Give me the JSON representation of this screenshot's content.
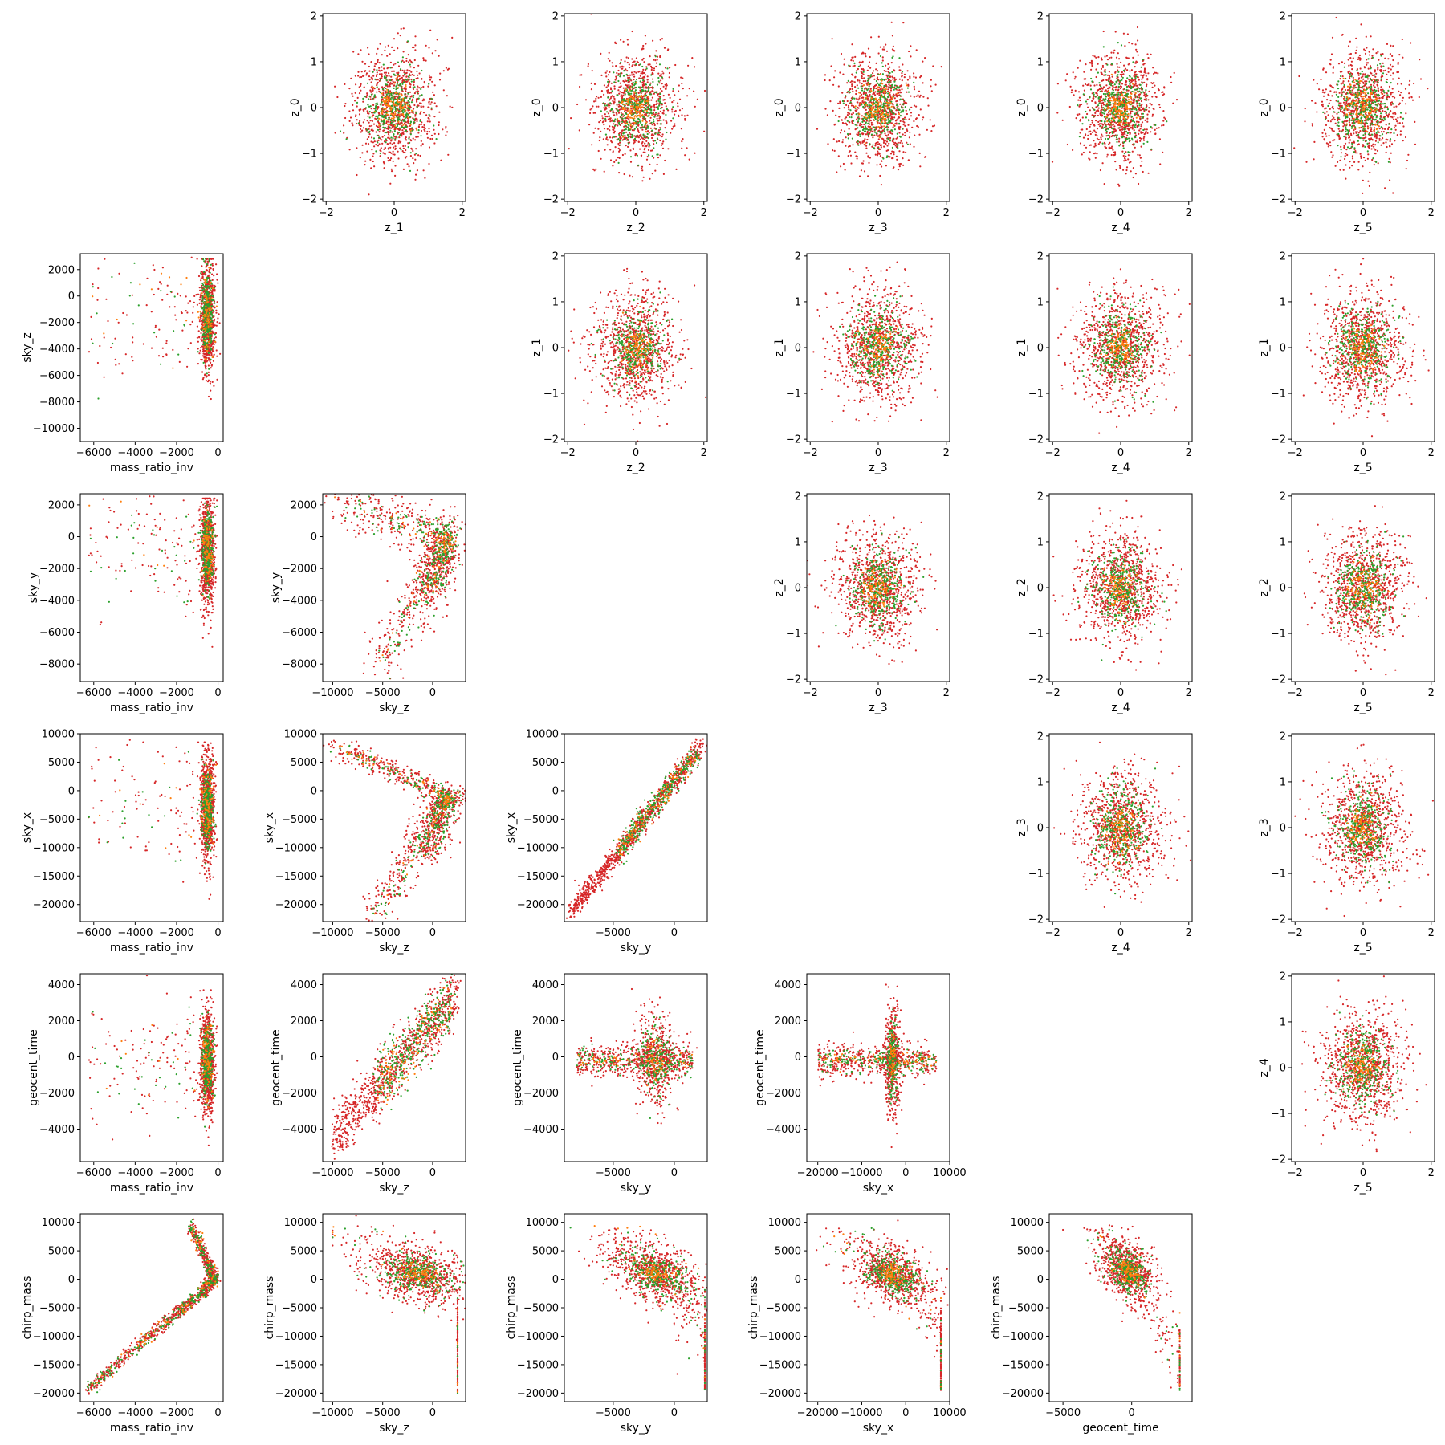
{
  "figure": {
    "type": "corner-scatter-matrix",
    "series_colors": {
      "red": "#d62728",
      "green": "#2ca02c",
      "orange": "#ff7f0e"
    }
  },
  "chart_data": [
    {
      "type": "scatter",
      "row": 0,
      "col": 1,
      "xlabel": "z_1",
      "ylabel": "z_0",
      "xlim": [
        -2.1,
        2.1
      ],
      "ylim": [
        -2.05,
        2.05
      ],
      "xticks": [
        -2,
        0,
        2
      ],
      "yticks": [
        -2,
        -1,
        0,
        1,
        2
      ],
      "gen": {
        "kind": "gauss",
        "cx": 0,
        "cy": 0,
        "sx": 0.6,
        "sy": 0.6
      }
    },
    {
      "type": "scatter",
      "row": 0,
      "col": 2,
      "xlabel": "z_2",
      "ylabel": "z_0",
      "xlim": [
        -2.1,
        2.1
      ],
      "ylim": [
        -2.05,
        2.05
      ],
      "xticks": [
        -2,
        0,
        2
      ],
      "yticks": [
        -2,
        -1,
        0,
        1,
        2
      ],
      "gen": {
        "kind": "gauss",
        "cx": 0,
        "cy": 0,
        "sx": 0.6,
        "sy": 0.6
      }
    },
    {
      "type": "scatter",
      "row": 0,
      "col": 3,
      "xlabel": "z_3",
      "ylabel": "z_0",
      "xlim": [
        -2.1,
        2.1
      ],
      "ylim": [
        -2.05,
        2.05
      ],
      "xticks": [
        -2,
        0,
        2
      ],
      "yticks": [
        -2,
        -1,
        0,
        1,
        2
      ],
      "gen": {
        "kind": "gauss",
        "cx": 0,
        "cy": 0,
        "sx": 0.6,
        "sy": 0.6
      }
    },
    {
      "type": "scatter",
      "row": 0,
      "col": 4,
      "xlabel": "z_4",
      "ylabel": "z_0",
      "xlim": [
        -2.1,
        2.1
      ],
      "ylim": [
        -2.05,
        2.05
      ],
      "xticks": [
        -2,
        0,
        2
      ],
      "yticks": [
        -2,
        -1,
        0,
        1,
        2
      ],
      "gen": {
        "kind": "gauss",
        "cx": 0,
        "cy": 0,
        "sx": 0.6,
        "sy": 0.6
      }
    },
    {
      "type": "scatter",
      "row": 0,
      "col": 5,
      "xlabel": "z_5",
      "ylabel": "z_0",
      "xlim": [
        -2.1,
        2.1
      ],
      "ylim": [
        -2.05,
        2.05
      ],
      "xticks": [
        -2,
        0,
        2
      ],
      "yticks": [
        -2,
        -1,
        0,
        1,
        2
      ],
      "gen": {
        "kind": "gauss",
        "cx": 0,
        "cy": 0,
        "sx": 0.6,
        "sy": 0.6
      }
    },
    {
      "type": "scatter",
      "row": 1,
      "col": 0,
      "xlabel": "mass_ratio_inv",
      "ylabel": "sky_z",
      "xlim": [
        -6650,
        250
      ],
      "ylim": [
        -11000,
        3200
      ],
      "xticks": [
        -6000,
        -4000,
        -2000,
        0
      ],
      "yticks": [
        -10000,
        -8000,
        -6000,
        -4000,
        -2000,
        0,
        2000
      ],
      "gen": {
        "kind": "vwall",
        "x0": -500,
        "xs": 170,
        "ylo": -10500,
        "yhi": 2800,
        "ypeak": -1500,
        "tail": 0.12,
        "tailx": -6300
      }
    },
    {
      "type": "scatter",
      "row": 1,
      "col": 2,
      "xlabel": "z_2",
      "ylabel": "z_1",
      "xlim": [
        -2.1,
        2.1
      ],
      "ylim": [
        -2.05,
        2.05
      ],
      "xticks": [
        -2,
        0,
        2
      ],
      "yticks": [
        -2,
        -1,
        0,
        1,
        2
      ],
      "gen": {
        "kind": "gauss",
        "cx": 0,
        "cy": 0,
        "sx": 0.6,
        "sy": 0.6
      }
    },
    {
      "type": "scatter",
      "row": 1,
      "col": 3,
      "xlabel": "z_3",
      "ylabel": "z_1",
      "xlim": [
        -2.1,
        2.1
      ],
      "ylim": [
        -2.05,
        2.05
      ],
      "xticks": [
        -2,
        0,
        2
      ],
      "yticks": [
        -2,
        -1,
        0,
        1,
        2
      ],
      "gen": {
        "kind": "gauss",
        "cx": 0,
        "cy": 0,
        "sx": 0.6,
        "sy": 0.6
      }
    },
    {
      "type": "scatter",
      "row": 1,
      "col": 4,
      "xlabel": "z_4",
      "ylabel": "z_1",
      "xlim": [
        -2.1,
        2.1
      ],
      "ylim": [
        -2.05,
        2.05
      ],
      "xticks": [
        -2,
        0,
        2
      ],
      "yticks": [
        -2,
        -1,
        0,
        1,
        2
      ],
      "gen": {
        "kind": "gauss",
        "cx": 0,
        "cy": 0,
        "sx": 0.6,
        "sy": 0.6
      }
    },
    {
      "type": "scatter",
      "row": 1,
      "col": 5,
      "xlabel": "z_5",
      "ylabel": "z_1",
      "xlim": [
        -2.1,
        2.1
      ],
      "ylim": [
        -2.05,
        2.05
      ],
      "xticks": [
        -2,
        0,
        2
      ],
      "yticks": [
        -2,
        -1,
        0,
        1,
        2
      ],
      "gen": {
        "kind": "gauss",
        "cx": 0,
        "cy": 0,
        "sx": 0.6,
        "sy": 0.6
      }
    },
    {
      "type": "scatter",
      "row": 2,
      "col": 0,
      "xlabel": "mass_ratio_inv",
      "ylabel": "sky_y",
      "xlim": [
        -6650,
        250
      ],
      "ylim": [
        -9100,
        2700
      ],
      "xticks": [
        -6000,
        -4000,
        -2000,
        0
      ],
      "yticks": [
        -8000,
        -6000,
        -4000,
        -2000,
        0,
        2000
      ],
      "gen": {
        "kind": "vwall",
        "x0": -500,
        "xs": 170,
        "ylo": -8400,
        "yhi": 2400,
        "ypeak": -1000,
        "tail": 0.12,
        "tailx": -6300
      }
    },
    {
      "type": "scatter",
      "row": 2,
      "col": 1,
      "xlabel": "sky_z",
      "ylabel": "sky_y",
      "xlim": [
        -11000,
        3300
      ],
      "ylim": [
        -9100,
        2700
      ],
      "xticks": [
        -10000,
        -5000,
        0
      ],
      "yticks": [
        -8000,
        -6000,
        -4000,
        -2000,
        0,
        2000
      ],
      "gen": {
        "kind": "wedge",
        "apex": [
          1500,
          -200
        ],
        "ends": [
          [
            -10000,
            2400
          ],
          [
            -5500,
            -8400
          ],
          [
            -500,
            -4000
          ]
        ]
      }
    },
    {
      "type": "scatter",
      "row": 2,
      "col": 3,
      "xlabel": "z_3",
      "ylabel": "z_2",
      "xlim": [
        -2.1,
        2.1
      ],
      "ylim": [
        -2.05,
        2.05
      ],
      "xticks": [
        -2,
        0,
        2
      ],
      "yticks": [
        -2,
        -1,
        0,
        1,
        2
      ],
      "gen": {
        "kind": "gauss",
        "cx": 0,
        "cy": 0,
        "sx": 0.6,
        "sy": 0.6
      }
    },
    {
      "type": "scatter",
      "row": 2,
      "col": 4,
      "xlabel": "z_4",
      "ylabel": "z_2",
      "xlim": [
        -2.1,
        2.1
      ],
      "ylim": [
        -2.05,
        2.05
      ],
      "xticks": [
        -2,
        0,
        2
      ],
      "yticks": [
        -2,
        -1,
        0,
        1,
        2
      ],
      "gen": {
        "kind": "gauss",
        "cx": 0,
        "cy": 0,
        "sx": 0.6,
        "sy": 0.6
      }
    },
    {
      "type": "scatter",
      "row": 2,
      "col": 5,
      "xlabel": "z_5",
      "ylabel": "z_2",
      "xlim": [
        -2.1,
        2.1
      ],
      "ylim": [
        -2.05,
        2.05
      ],
      "xticks": [
        -2,
        0,
        2
      ],
      "yticks": [
        -2,
        -1,
        0,
        1,
        2
      ],
      "gen": {
        "kind": "gauss",
        "cx": 0,
        "cy": 0,
        "sx": 0.6,
        "sy": 0.6
      }
    },
    {
      "type": "scatter",
      "row": 3,
      "col": 0,
      "xlabel": "mass_ratio_inv",
      "ylabel": "sky_x",
      "xlim": [
        -6650,
        250
      ],
      "ylim": [
        -23000,
        10000
      ],
      "xticks": [
        -6000,
        -4000,
        -2000,
        0
      ],
      "yticks": [
        -20000,
        -15000,
        -10000,
        -5000,
        0,
        5000,
        10000
      ],
      "gen": {
        "kind": "vwall",
        "x0": -500,
        "xs": 170,
        "ylo": -21500,
        "yhi": 8500,
        "ypeak": -3000,
        "tail": 0.12,
        "tailx": -6300
      }
    },
    {
      "type": "scatter",
      "row": 3,
      "col": 1,
      "xlabel": "sky_z",
      "ylabel": "sky_x",
      "xlim": [
        -11000,
        3300
      ],
      "ylim": [
        -23000,
        10000
      ],
      "xticks": [
        -10000,
        -5000,
        0
      ],
      "yticks": [
        -20000,
        -15000,
        -10000,
        -5000,
        0,
        5000,
        10000
      ],
      "gen": {
        "kind": "wedge",
        "apex": [
          1500,
          -1000
        ],
        "ends": [
          [
            -10000,
            8000
          ],
          [
            -5500,
            -21500
          ],
          [
            -500,
            -12000
          ]
        ]
      }
    },
    {
      "type": "scatter",
      "row": 3,
      "col": 2,
      "xlabel": "sky_y",
      "ylabel": "sky_x",
      "xlim": [
        -9000,
        2700
      ],
      "ylim": [
        -23000,
        10000
      ],
      "xticks": [
        -5000,
        0
      ],
      "yticks": [
        -20000,
        -15000,
        -10000,
        -5000,
        0,
        5000,
        10000
      ],
      "gen": {
        "kind": "line",
        "x0": -8500,
        "y0": -21500,
        "x1": 2300,
        "y1": 8000,
        "w": 900
      }
    },
    {
      "type": "scatter",
      "row": 3,
      "col": 4,
      "xlabel": "z_4",
      "ylabel": "z_3",
      "xlim": [
        -2.1,
        2.1
      ],
      "ylim": [
        -2.05,
        2.05
      ],
      "xticks": [
        -2,
        0,
        2
      ],
      "yticks": [
        -2,
        -1,
        0,
        1,
        2
      ],
      "gen": {
        "kind": "gauss",
        "cx": 0,
        "cy": 0,
        "sx": 0.6,
        "sy": 0.6
      }
    },
    {
      "type": "scatter",
      "row": 3,
      "col": 5,
      "xlabel": "z_5",
      "ylabel": "z_3",
      "xlim": [
        -2.1,
        2.1
      ],
      "ylim": [
        -2.05,
        2.05
      ],
      "xticks": [
        -2,
        0,
        2
      ],
      "yticks": [
        -2,
        -1,
        0,
        1,
        2
      ],
      "gen": {
        "kind": "gauss",
        "cx": 0,
        "cy": 0,
        "sx": 0.6,
        "sy": 0.6
      }
    },
    {
      "type": "scatter",
      "row": 4,
      "col": 0,
      "xlabel": "mass_ratio_inv",
      "ylabel": "geocent_time",
      "xlim": [
        -6650,
        250
      ],
      "ylim": [
        -5800,
        4600
      ],
      "xticks": [
        -6000,
        -4000,
        -2000,
        0
      ],
      "yticks": [
        -4000,
        -2000,
        0,
        2000,
        4000
      ],
      "gen": {
        "kind": "vwall",
        "x0": -500,
        "xs": 170,
        "ylo": -5200,
        "yhi": 3700,
        "ypeak": -300,
        "tail": 0.14,
        "tailx": -6300
      }
    },
    {
      "type": "scatter",
      "row": 4,
      "col": 1,
      "xlabel": "sky_z",
      "ylabel": "geocent_time",
      "xlim": [
        -11000,
        3300
      ],
      "ylim": [
        -5800,
        4600
      ],
      "xticks": [
        -10000,
        -5000,
        0
      ],
      "yticks": [
        -4000,
        -2000,
        0,
        2000,
        4000
      ],
      "gen": {
        "kind": "line",
        "x0": -10000,
        "y0": -4500,
        "x1": 2500,
        "y1": 3500,
        "w": 800
      }
    },
    {
      "type": "scatter",
      "row": 4,
      "col": 2,
      "xlabel": "sky_y",
      "ylabel": "geocent_time",
      "xlim": [
        -9000,
        2700
      ],
      "ylim": [
        -5800,
        4600
      ],
      "xticks": [
        -5000,
        0
      ],
      "yticks": [
        -4000,
        -2000,
        0,
        2000,
        4000
      ],
      "gen": {
        "kind": "cross",
        "cx": -1500,
        "cy": -200,
        "hx": [
          -8000,
          1500
        ],
        "vy": [
          -5000,
          4000
        ]
      }
    },
    {
      "type": "scatter",
      "row": 4,
      "col": 3,
      "xlabel": "sky_x",
      "ylabel": "geocent_time",
      "xlim": [
        -22500,
        10000
      ],
      "ylim": [
        -5800,
        4600
      ],
      "xticks": [
        -20000,
        -10000,
        0,
        10000
      ],
      "yticks": [
        -4000,
        -2000,
        0,
        2000,
        4000
      ],
      "gen": {
        "kind": "cross",
        "cx": -3000,
        "cy": -200,
        "hx": [
          -20000,
          7000
        ],
        "vy": [
          -5000,
          4000
        ]
      }
    },
    {
      "type": "scatter",
      "row": 4,
      "col": 5,
      "xlabel": "z_5",
      "ylabel": "z_4",
      "xlim": [
        -2.1,
        2.1
      ],
      "ylim": [
        -2.05,
        2.05
      ],
      "xticks": [
        -2,
        0,
        2
      ],
      "yticks": [
        -2,
        -1,
        0,
        1,
        2
      ],
      "gen": {
        "kind": "gauss",
        "cx": 0,
        "cy": 0,
        "sx": 0.6,
        "sy": 0.6
      }
    },
    {
      "type": "scatter",
      "row": 5,
      "col": 0,
      "xlabel": "mass_ratio_inv",
      "ylabel": "chirp_mass",
      "xlim": [
        -6650,
        250
      ],
      "ylim": [
        -21500,
        11500
      ],
      "xticks": [
        -6000,
        -4000,
        -2000,
        0
      ],
      "yticks": [
        -20000,
        -15000,
        -10000,
        -5000,
        0,
        5000,
        10000
      ],
      "gen": {
        "kind": "curve",
        "pts": [
          [
            -6300,
            -19500
          ],
          [
            -4000,
            -12000
          ],
          [
            -2000,
            -6000
          ],
          [
            -800,
            -2500
          ],
          [
            -150,
            0
          ],
          [
            -500,
            3000
          ],
          [
            -1300,
            9500
          ]
        ],
        "w": 500
      }
    },
    {
      "type": "scatter",
      "row": 5,
      "col": 1,
      "xlabel": "sky_z",
      "ylabel": "chirp_mass",
      "xlim": [
        -11000,
        3300
      ],
      "ylim": [
        -21500,
        11500
      ],
      "xticks": [
        -10000,
        -5000,
        0
      ],
      "yticks": [
        -20000,
        -15000,
        -10000,
        -5000,
        0,
        5000,
        10000
      ],
      "gen": {
        "kind": "fan",
        "cx": -1500,
        "cy": 1000,
        "sx": 2500,
        "sy": 2500,
        "tailx": [
          -10000,
          2500
        ],
        "taily": [
          -20000,
          9500
        ],
        "slope": -0.6
      }
    },
    {
      "type": "scatter",
      "row": 5,
      "col": 2,
      "xlabel": "sky_y",
      "ylabel": "chirp_mass",
      "xlim": [
        -9000,
        2700
      ],
      "ylim": [
        -21500,
        11500
      ],
      "xticks": [
        -5000,
        0
      ],
      "yticks": [
        -20000,
        -15000,
        -10000,
        -5000,
        0,
        5000,
        10000
      ],
      "gen": {
        "kind": "fan",
        "cx": -1500,
        "cy": 1000,
        "sx": 2000,
        "sy": 2500,
        "tailx": [
          -8500,
          2500
        ],
        "taily": [
          -19500,
          9500
        ],
        "slope": -1.2
      }
    },
    {
      "type": "scatter",
      "row": 5,
      "col": 3,
      "xlabel": "sky_x",
      "ylabel": "chirp_mass",
      "xlim": [
        -22500,
        10000
      ],
      "ylim": [
        -21500,
        11500
      ],
      "xticks": [
        -20000,
        -10000,
        0,
        10000
      ],
      "yticks": [
        -20000,
        -15000,
        -10000,
        -5000,
        0,
        5000,
        10000
      ],
      "gen": {
        "kind": "fan",
        "cx": -3000,
        "cy": 800,
        "sx": 4500,
        "sy": 2500,
        "tailx": [
          -21000,
          8000
        ],
        "taily": [
          -19500,
          9000
        ],
        "slope": -0.4
      }
    },
    {
      "type": "scatter",
      "row": 5,
      "col": 4,
      "xlabel": "geocent_time",
      "ylabel": "chirp_mass",
      "xlim": [
        -6000,
        4400
      ],
      "ylim": [
        -21500,
        11500
      ],
      "xticks": [
        -5000,
        0
      ],
      "yticks": [
        -20000,
        -15000,
        -10000,
        -5000,
        0,
        5000,
        10000
      ],
      "gen": {
        "kind": "fan",
        "cx": -300,
        "cy": 1500,
        "sx": 1000,
        "sy": 2500,
        "tailx": [
          -5000,
          3500
        ],
        "taily": [
          -19500,
          9000
        ],
        "slope": -1.8
      }
    }
  ]
}
